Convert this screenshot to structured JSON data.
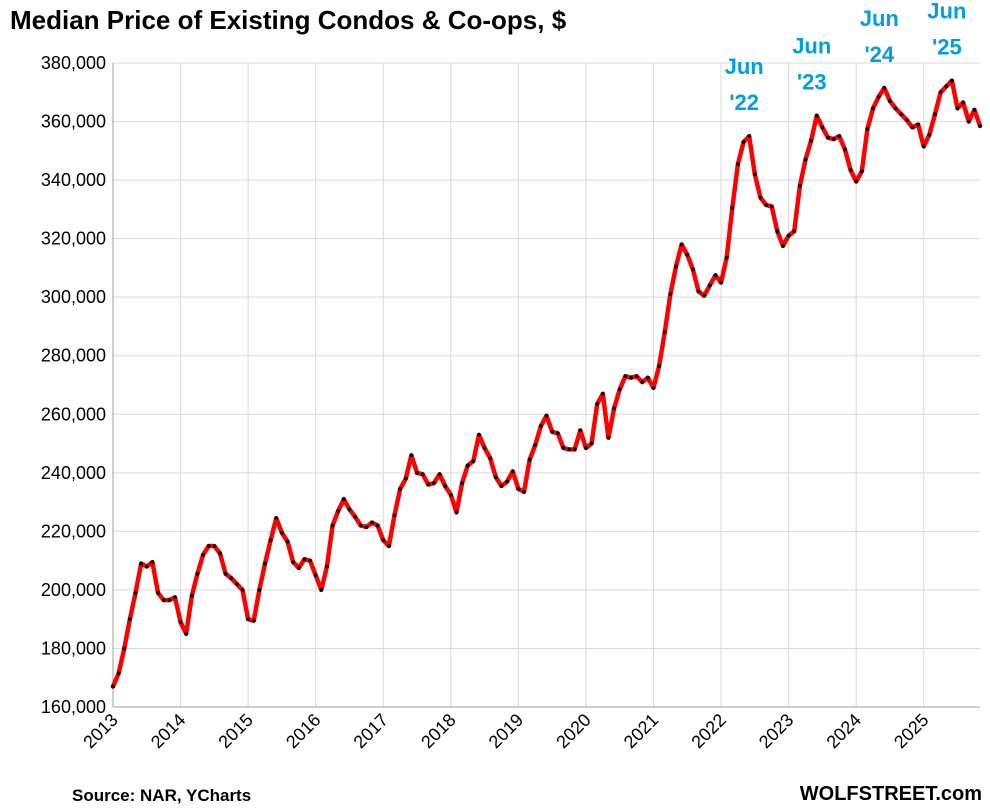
{
  "chart_data": {
    "type": "line",
    "title": "Median Price of Existing Condos & Co-ops, $",
    "source": "Source: NAR, YCharts",
    "brand": "WOLFSTREET.com",
    "ylim": [
      160000,
      380000
    ],
    "ytick_values": [
      160000,
      180000,
      200000,
      220000,
      240000,
      260000,
      280000,
      300000,
      320000,
      340000,
      360000,
      380000
    ],
    "ytick_labels": [
      "160,000",
      "180,000",
      "200,000",
      "220,000",
      "240,000",
      "260,000",
      "280,000",
      "300,000",
      "320,000",
      "340,000",
      "360,000",
      "380,000"
    ],
    "xtick_labels": [
      "2013",
      "2014",
      "2015",
      "2016",
      "2017",
      "2018",
      "2019",
      "2020",
      "2021",
      "2022",
      "2023",
      "2024",
      "2025"
    ],
    "grid": true,
    "line_color": "#ff0000",
    "marker_color": "#000000",
    "annotation_color": "#00a0e0",
    "series": [
      {
        "start": "2013-01",
        "frequency": "monthly",
        "values": [
          167000,
          171500,
          180000,
          190000,
          199000,
          209000,
          208000,
          209500,
          199000,
          196500,
          196500,
          197500,
          189000,
          185000,
          198000,
          205500,
          212000,
          215000,
          215000,
          212500,
          205500,
          204000,
          202000,
          200000,
          190000,
          189500,
          200000,
          209000,
          217000,
          224500,
          219500,
          216500,
          209500,
          207500,
          210500,
          210000,
          205000,
          200000,
          208000,
          222000,
          227000,
          231000,
          227500,
          225000,
          222000,
          221500,
          223000,
          222000,
          217000,
          215000,
          225500,
          234500,
          238000,
          246000,
          240000,
          239500,
          236000,
          236500,
          239500,
          235500,
          232500,
          226500,
          236500,
          242500,
          244000,
          253000,
          248500,
          245000,
          238500,
          235500,
          237000,
          240500,
          234500,
          233500,
          244500,
          249500,
          256000,
          259500,
          254000,
          253500,
          248500,
          248000,
          248000,
          254500,
          248500,
          250000,
          263500,
          267000,
          252000,
          262000,
          268500,
          273000,
          272500,
          273000,
          271000,
          272500,
          269000,
          276500,
          288000,
          301000,
          310500,
          318000,
          314500,
          309500,
          302000,
          300500,
          304000,
          307500,
          305000,
          313500,
          330500,
          345500,
          353000,
          355000,
          342000,
          334000,
          331500,
          331000,
          322500,
          317500,
          321000,
          322500,
          338000,
          347000,
          353500,
          362000,
          358000,
          354500,
          354000,
          355000,
          350500,
          343500,
          339500,
          343000,
          357500,
          364500,
          368500,
          371500,
          367000,
          364500,
          362500,
          360500,
          358000,
          359000,
          351500,
          355500,
          362500,
          370000,
          372000,
          374000,
          364500,
          366500,
          360000,
          364000,
          358500
        ]
      }
    ],
    "annotations": [
      {
        "line1": "Jun",
        "line2": "'22",
        "date": "2022-06"
      },
      {
        "line1": "Jun",
        "line2": "'23",
        "date": "2023-06"
      },
      {
        "line1": "Jun",
        "line2": "'24",
        "date": "2024-06"
      },
      {
        "line1": "Jun",
        "line2": "'25",
        "date": "2025-06"
      }
    ]
  }
}
